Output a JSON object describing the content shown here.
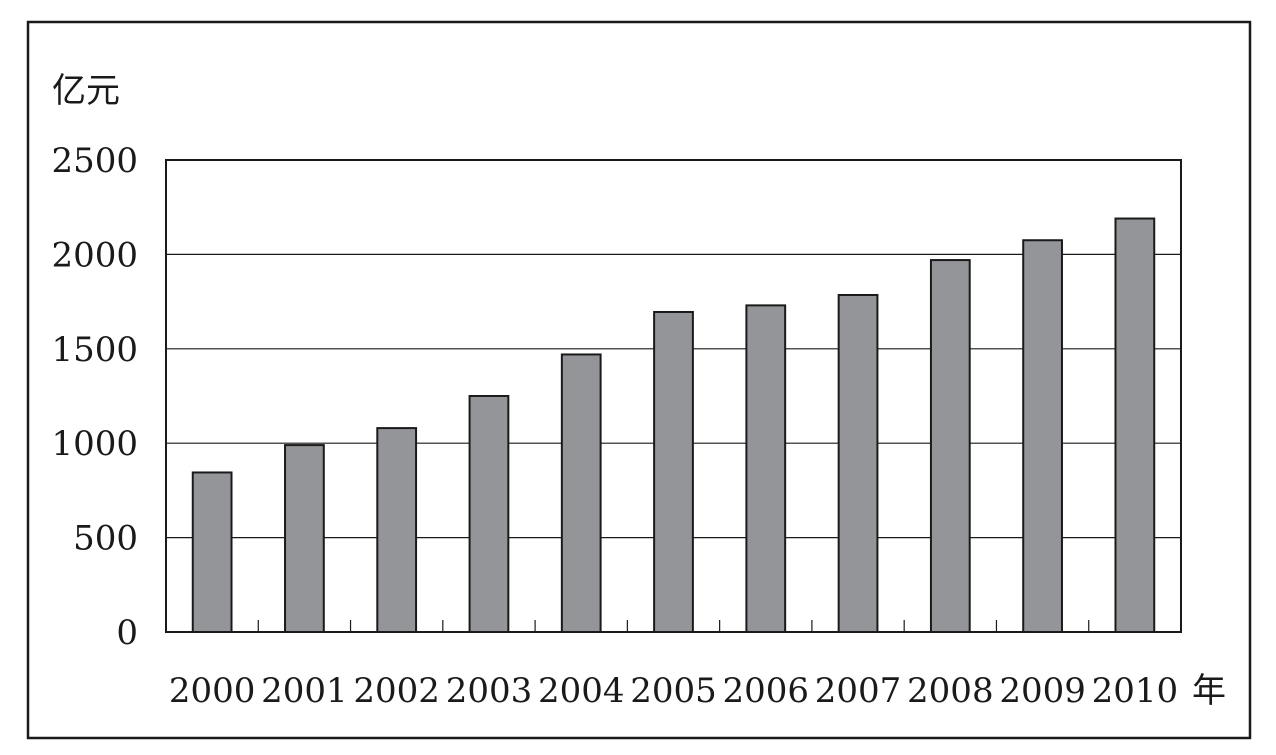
{
  "chart_data": {
    "type": "bar",
    "title": "",
    "xlabel": "年",
    "ylabel": "亿元",
    "categories": [
      "2000",
      "2001",
      "2002",
      "2003",
      "2004",
      "2005",
      "2006",
      "2007",
      "2008",
      "2009",
      "2010"
    ],
    "values": [
      845,
      990,
      1080,
      1250,
      1470,
      1695,
      1730,
      1785,
      1970,
      2075,
      2190
    ],
    "ylim": [
      0,
      2500
    ],
    "yticks": [
      0,
      500,
      1000,
      1500,
      2000,
      2500
    ],
    "grid": true,
    "legend": "none",
    "colors": {
      "bar": "#939598",
      "bar_stroke": "#1a1a1a",
      "frame": "#1a1a1a",
      "grid": "#1a1a1a"
    }
  }
}
